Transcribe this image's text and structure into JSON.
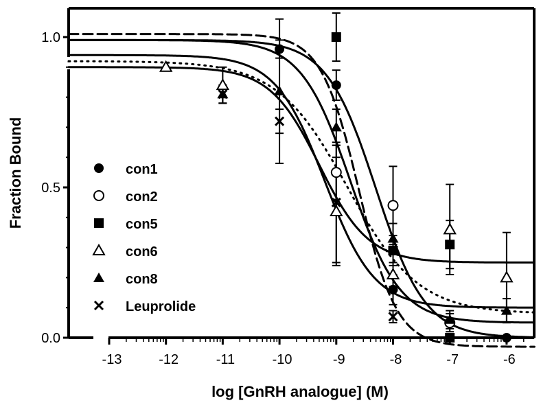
{
  "chart_data": {
    "type": "scatter",
    "xlabel": "log [GnRH analogue] (M)",
    "ylabel": "Fraction Bound",
    "xlim": [
      -13.7,
      -5.5
    ],
    "ylim": [
      -0.02,
      1.1
    ],
    "x_axis_break_after": -13.5,
    "y_axis_break_between": [
      0.92,
      0.98
    ],
    "xticks": [
      -13,
      -12,
      -11,
      -10,
      -9,
      -8,
      -7,
      -6
    ],
    "xtick_labels": [
      "-13",
      "-12",
      "-11",
      "-10",
      "-9",
      "-8",
      "-7",
      "-6"
    ],
    "yticks": [
      0.0,
      0.5,
      1.0
    ],
    "ytick_labels": [
      "0.0",
      "0.5",
      "1.0"
    ],
    "legend_position": "left",
    "series": [
      {
        "name": "con1",
        "marker": "filled-circle",
        "points": [
          {
            "x": -10,
            "y": 0.96,
            "err": 0.03
          },
          {
            "x": -9,
            "y": 0.84,
            "err": 0.05
          },
          {
            "x": -8,
            "y": 0.16,
            "err": 0.05
          },
          {
            "x": -6,
            "y": 0.0,
            "err": 0.0
          }
        ],
        "fit": {
          "top": 0.99,
          "bottom": 0.0,
          "logEC50": -8.3,
          "hill": 1.0,
          "style": "solid"
        }
      },
      {
        "name": "con2",
        "marker": "open-circle",
        "points": [
          {
            "x": -9,
            "y": 0.55,
            "err": 0.09
          },
          {
            "x": -8,
            "y": 0.44,
            "err": 0.13
          },
          {
            "x": -7,
            "y": 0.05,
            "err": 0.03
          }
        ],
        "fit": {
          "top": 0.99,
          "bottom": 0.05,
          "logEC50": -8.75,
          "hill": 1.0,
          "style": "solid"
        }
      },
      {
        "name": "con5",
        "marker": "filled-square",
        "points": [
          {
            "x": -9,
            "y": 1.0,
            "err": 0.08
          },
          {
            "x": -8,
            "y": 0.29,
            "err": 0.05
          },
          {
            "x": -7,
            "y": 0.31,
            "err": 0.08
          },
          {
            "x": -7,
            "y": 0.0,
            "err": 0.0
          }
        ],
        "fit": {
          "top": 1.01,
          "bottom": -0.03,
          "logEC50": -8.6,
          "hill": 1.3,
          "style": "dashed"
        }
      },
      {
        "name": "con6",
        "marker": "open-triangle",
        "points": [
          {
            "x": -12,
            "y": 0.9,
            "err": 0.0
          },
          {
            "x": -11,
            "y": 0.84,
            "err": 0.06
          },
          {
            "x": -9,
            "y": 0.42,
            "err": 0.18
          },
          {
            "x": -8,
            "y": 0.21,
            "err": 0.04
          },
          {
            "x": -7,
            "y": 0.36,
            "err": 0.15
          },
          {
            "x": -6,
            "y": 0.2,
            "err": 0.15
          }
        ],
        "fit": {
          "top": 0.9,
          "bottom": 0.25,
          "logEC50": -9.3,
          "hill": 1.0,
          "style": "solid"
        }
      },
      {
        "name": "con8",
        "marker": "filled-triangle",
        "points": [
          {
            "x": -11,
            "y": 0.81,
            "err": 0.03
          },
          {
            "x": -10,
            "y": 0.82,
            "err": 0.24
          },
          {
            "x": -9,
            "y": 0.7,
            "err": 0.06
          },
          {
            "x": -8,
            "y": 0.33,
            "err": 0.05
          },
          {
            "x": -7,
            "y": 0.06,
            "err": 0.03
          },
          {
            "x": -6,
            "y": 0.09,
            "err": 0.04
          }
        ],
        "fit": {
          "top": 0.92,
          "bottom": 0.08,
          "logEC50": -8.8,
          "hill": 0.7,
          "style": "dotted"
        }
      },
      {
        "name": "Leuprolide",
        "marker": "cross",
        "points": [
          {
            "x": -11,
            "y": 0.81,
            "err": 0.03
          },
          {
            "x": -10,
            "y": 0.72,
            "err": 0.04
          },
          {
            "x": -9,
            "y": 0.45,
            "err": 0.2
          },
          {
            "x": -8,
            "y": 0.07,
            "err": 0.02
          }
        ],
        "fit": {
          "top": 0.94,
          "bottom": 0.1,
          "logEC50": -9.2,
          "hill": 1.0,
          "style": "solid"
        }
      }
    ]
  }
}
